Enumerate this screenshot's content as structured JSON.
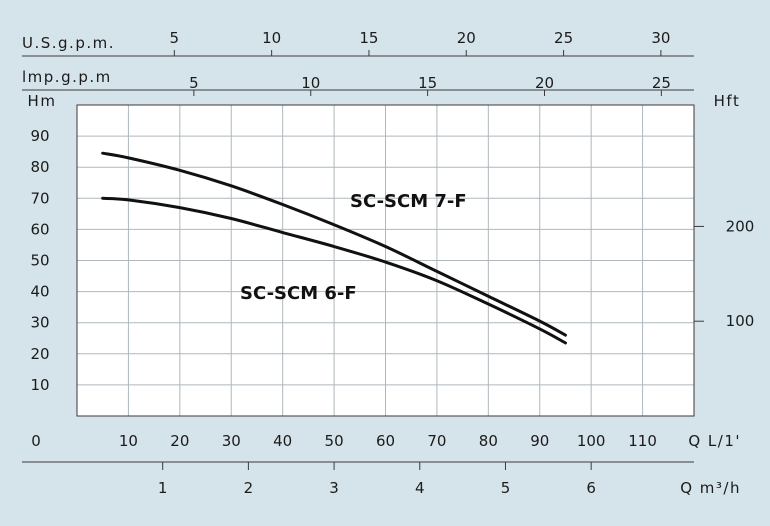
{
  "chart_data": {
    "type": "line",
    "xlabel": "Q L/1'",
    "ylabel": "Hm",
    "y2label": "Hft",
    "x_origin_label": "0",
    "x_ticks": [
      10,
      20,
      30,
      40,
      50,
      60,
      70,
      80,
      90,
      100,
      110
    ],
    "y_ticks": [
      10,
      20,
      30,
      40,
      50,
      60,
      70,
      80,
      90
    ],
    "y2_ticks": [
      100,
      200
    ],
    "xlim": [
      0,
      120
    ],
    "ylim": [
      0,
      100
    ],
    "secondary_axes": [
      {
        "label": "U.S.g.p.m.",
        "ticks": [
          5,
          10,
          15,
          20,
          25,
          30
        ]
      },
      {
        "label": "lmp.g.p.m",
        "ticks": [
          5,
          10,
          15,
          20,
          25
        ]
      },
      {
        "label": "Q m³/h",
        "ticks": [
          1,
          2,
          3,
          4,
          5,
          6
        ]
      }
    ],
    "series": [
      {
        "name": "SC-SCM 7-F",
        "x": [
          5,
          10,
          20,
          30,
          40,
          50,
          60,
          70,
          80,
          90,
          95
        ],
        "y": [
          84.5,
          83,
          79,
          74,
          68,
          61.5,
          54.5,
          46.5,
          38.5,
          30.5,
          26
        ]
      },
      {
        "name": "SC-SCM 6-F",
        "x": [
          5,
          10,
          20,
          30,
          40,
          50,
          60,
          70,
          80,
          90,
          95
        ],
        "y": [
          70,
          69.5,
          67,
          63.5,
          59,
          54.5,
          49.5,
          43.5,
          36,
          28,
          23.5
        ]
      }
    ],
    "grid": true,
    "background": "#d5e3ea",
    "line_color": "#111111"
  }
}
